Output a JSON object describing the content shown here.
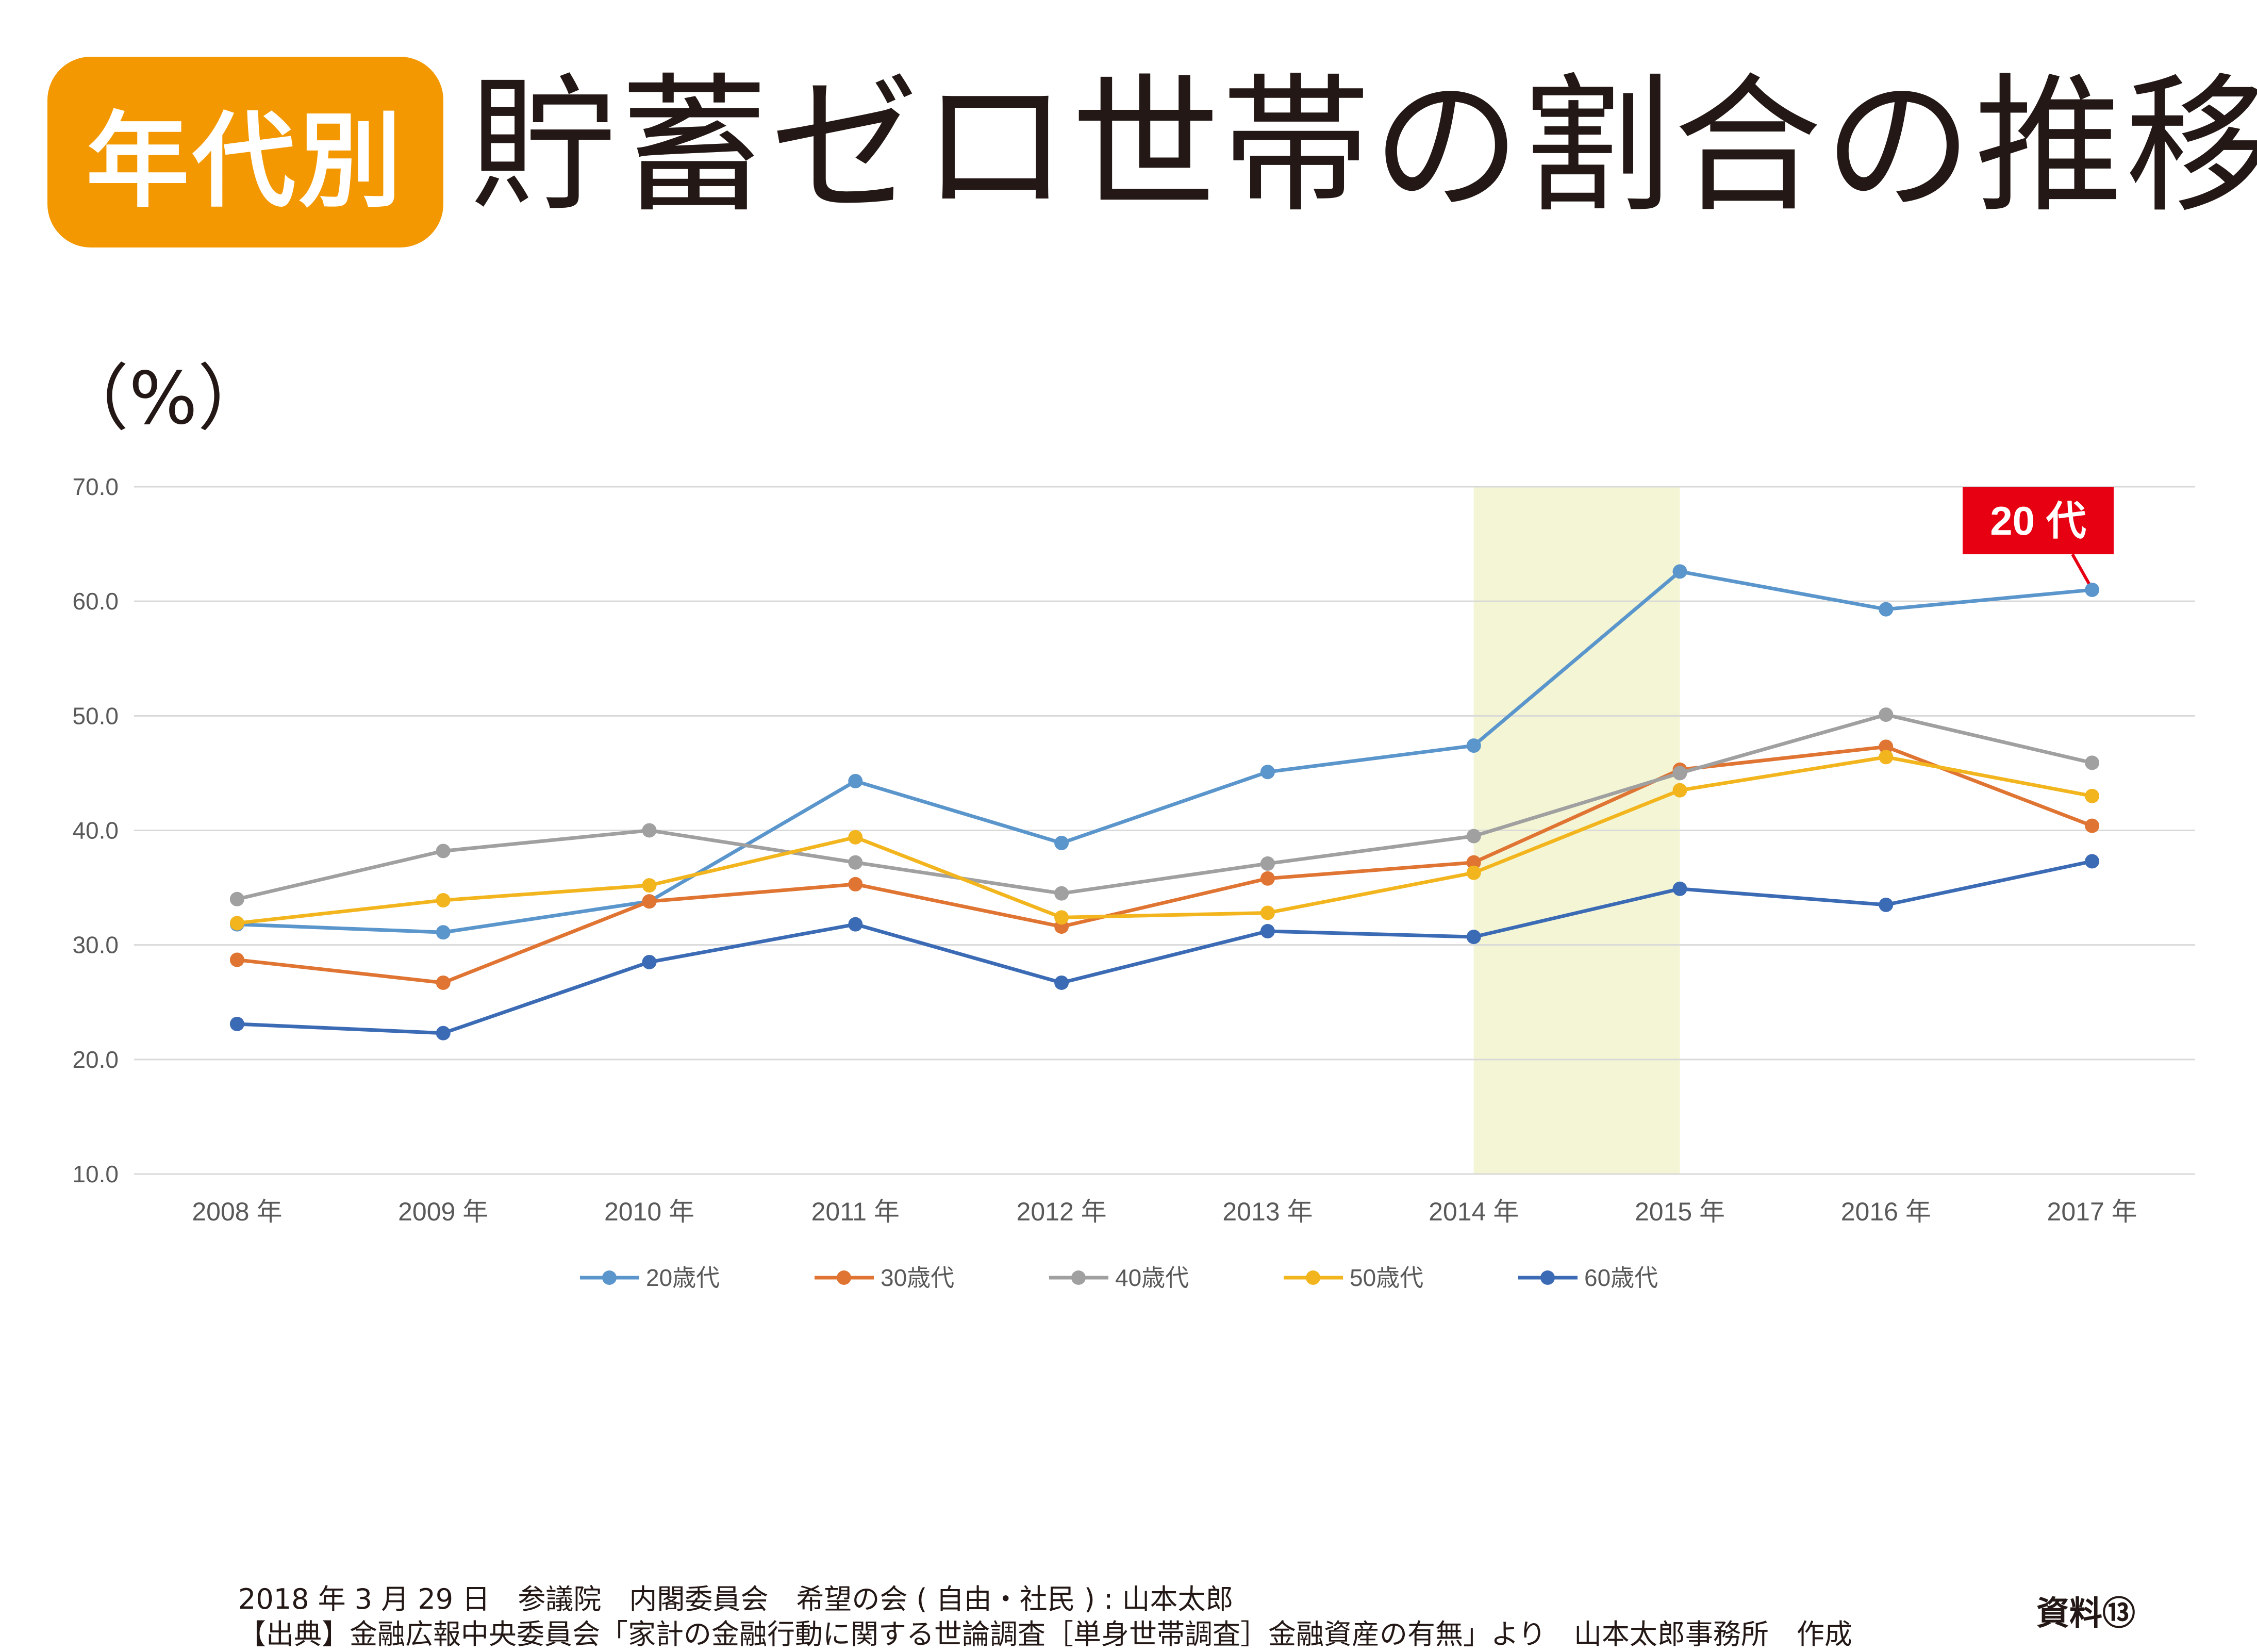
{
  "header": {
    "badge": "年代別",
    "title": "貯蓄ゼロ世帯の割合の推移"
  },
  "chart_unit": "（%）",
  "chart_data": {
    "type": "line",
    "title": "",
    "xlabel": "",
    "ylabel": "（%）",
    "x": [
      "2008 年",
      "2009 年",
      "2010 年",
      "2011 年",
      "2012 年",
      "2013 年",
      "2014 年",
      "2015 年",
      "2016 年",
      "2017 年"
    ],
    "ylim": [
      10,
      70
    ],
    "yticks": [
      "10.0",
      "20.0",
      "30.0",
      "40.0",
      "50.0",
      "60.0",
      "70.0"
    ],
    "grid": true,
    "legend_position": "bottom",
    "highlight_band": {
      "from": "2014 年",
      "to": "2015 年",
      "color": "#f4f5d4"
    },
    "callout": {
      "label": "20 代",
      "series": "20歳代",
      "x": "2017 年",
      "color": "#e60012"
    },
    "series": [
      {
        "name": "20歳代",
        "color": "#5a96cc",
        "values": [
          31.8,
          31.1,
          33.8,
          44.3,
          38.9,
          45.1,
          47.4,
          62.6,
          59.3,
          61.0
        ]
      },
      {
        "name": "30歳代",
        "color": "#e07432",
        "values": [
          28.7,
          26.7,
          33.8,
          35.3,
          31.6,
          35.8,
          37.2,
          45.3,
          47.3,
          40.4
        ]
      },
      {
        "name": "40歳代",
        "color": "#a0a0a0",
        "values": [
          34.0,
          38.2,
          40.0,
          37.2,
          34.5,
          37.1,
          39.5,
          45.0,
          50.1,
          45.9
        ]
      },
      {
        "name": "50歳代",
        "color": "#f2b51e",
        "values": [
          31.9,
          33.9,
          35.2,
          39.4,
          32.4,
          32.8,
          36.3,
          43.5,
          46.4,
          43.0
        ]
      },
      {
        "name": "60歳代",
        "color": "#3c6bb5",
        "values": [
          23.1,
          22.3,
          28.5,
          31.8,
          26.7,
          31.2,
          30.7,
          34.9,
          33.5,
          37.3
        ]
      }
    ]
  },
  "footer": {
    "line1": "2018 年 3 月 29 日　参議院　内閣委員会　希望の会 ( 自由・社民 ) : 山本太郎",
    "line2": "【出典】金融広報中央委員会「家計の金融行動に関する世論調査［単身世帯調査］金融資産の有無」より　山本太郎事務所　作成",
    "doc_id": "資料⑬"
  }
}
